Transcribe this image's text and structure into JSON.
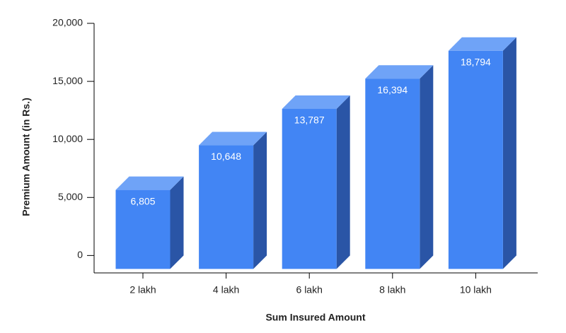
{
  "chart_data": {
    "type": "bar3d",
    "y_label": "Premium Amount (in Rs.)",
    "x_label": "Sum Insured Amount",
    "categories": [
      "2 lakh",
      "4 lakh",
      "6 lakh",
      "8 lakh",
      "10 lakh"
    ],
    "values": [
      6805,
      10648,
      13787,
      16394,
      18794
    ],
    "value_labels": [
      "6,805",
      "10,648",
      "13,787",
      "16,394",
      "18,794"
    ],
    "color": "#4285f4",
    "ylim": [
      -1500,
      20000
    ],
    "yticks": [
      0,
      {
        "value": 5000,
        "label": "5,000"
      },
      {
        "value": 10000,
        "label": "10,000"
      },
      {
        "value": 15000,
        "label": "15,000"
      },
      {
        "value": 20000,
        "label": "20,000"
      }
    ]
  }
}
